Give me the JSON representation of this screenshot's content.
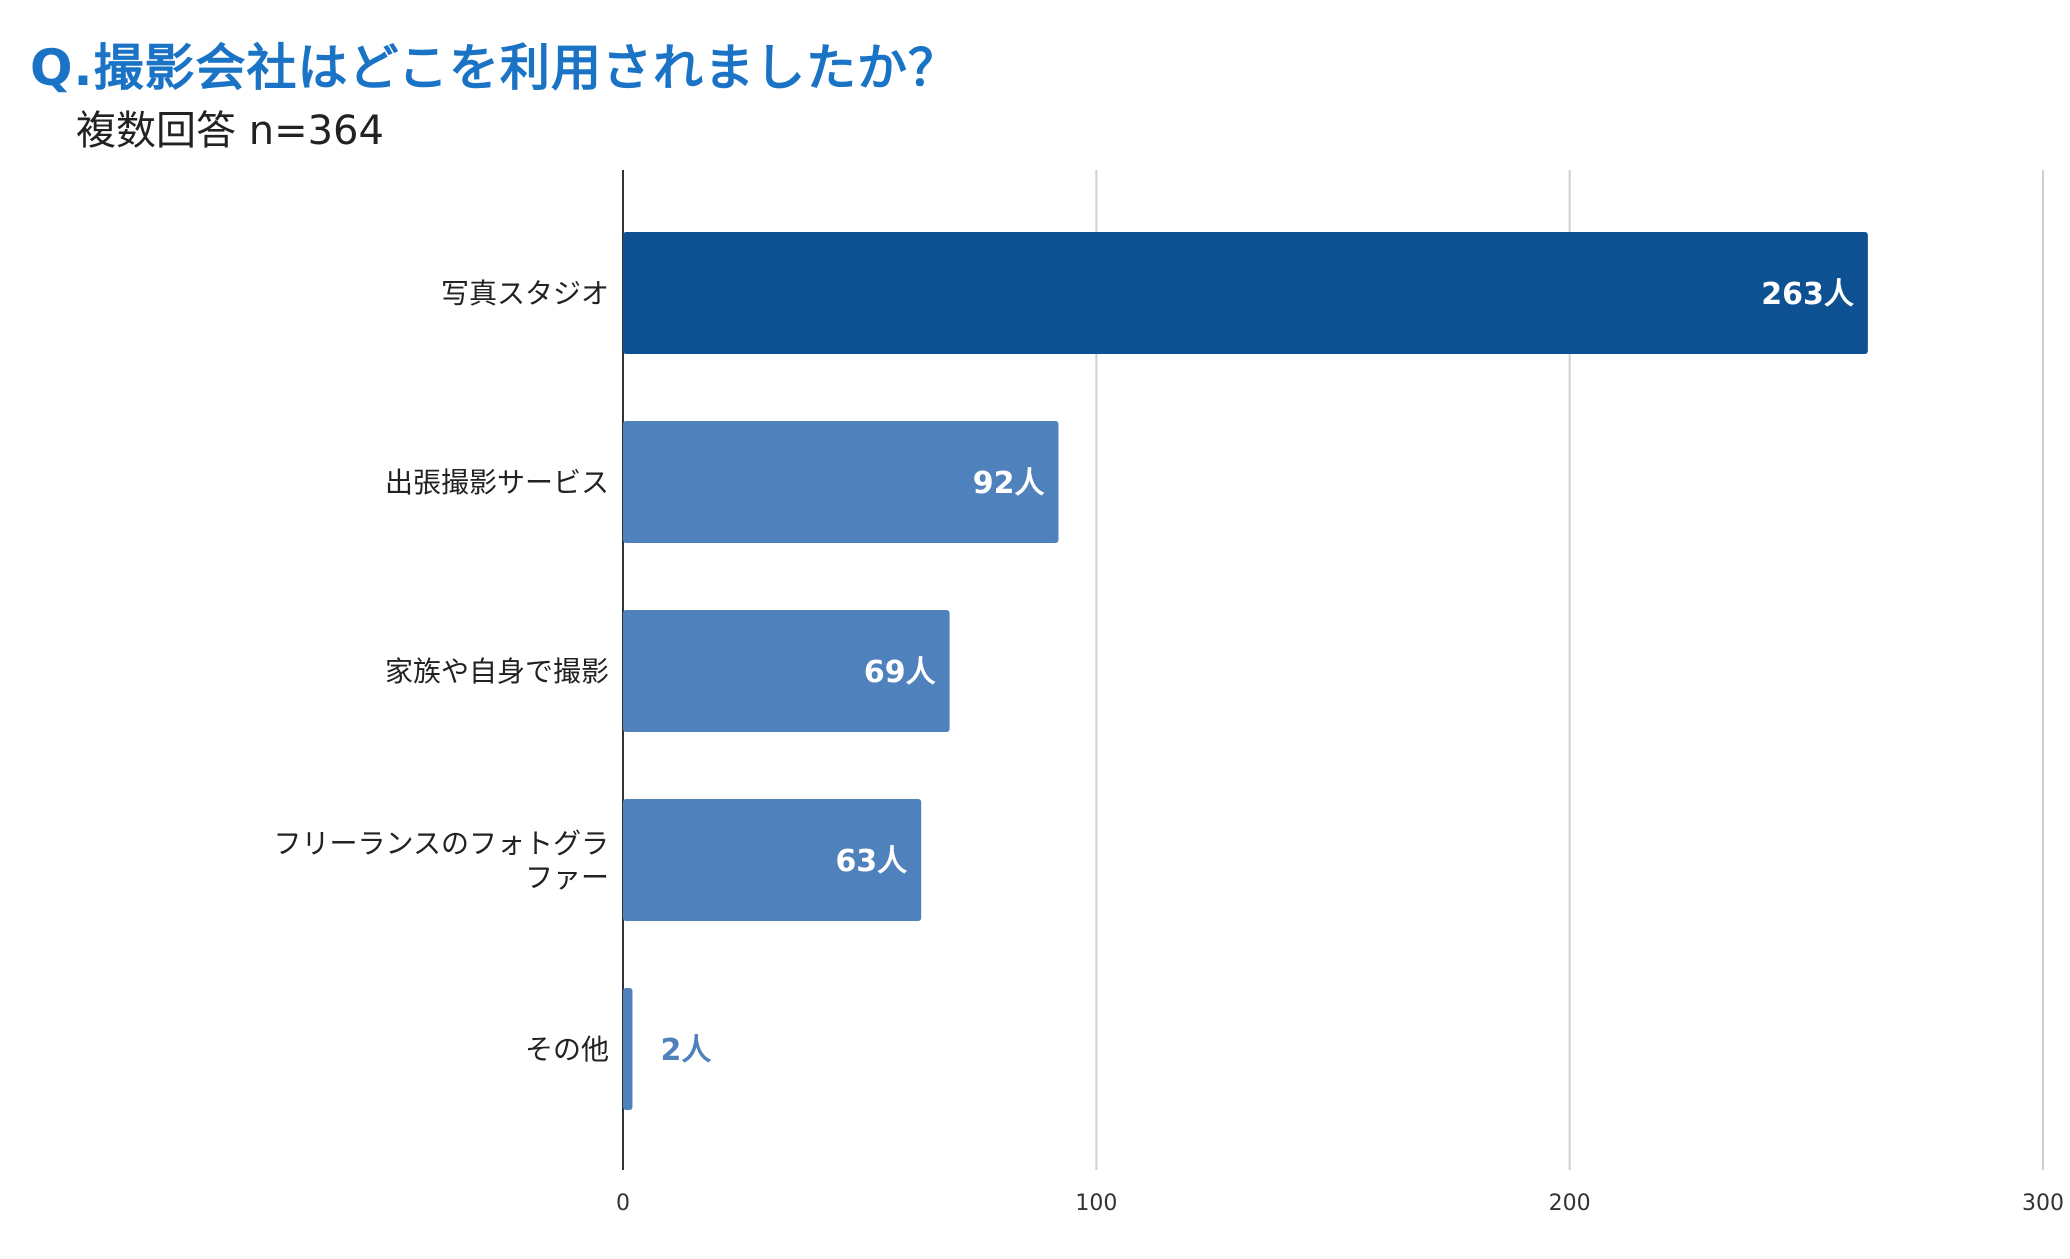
{
  "header": {
    "title": "Q.撮影会社はどこを利用されましたか？",
    "subtitle": "複数回答 n=364"
  },
  "colors": {
    "title": "#1a73c4",
    "bar_primary": "#0e5193",
    "bar_secondary": "#4f81bd",
    "label_inside": "#ffffff",
    "label_outside": "#4f81bd"
  },
  "chart_data": {
    "type": "bar",
    "orientation": "horizontal",
    "title": "Q.撮影会社はどこを利用されましたか？",
    "subtitle": "複数回答 n=364",
    "categories": [
      [
        "写真スタジオ"
      ],
      [
        "出張撮影サービス"
      ],
      [
        "家族や自身で撮影"
      ],
      [
        "フリーランスのフォトグラ",
        "ファー"
      ],
      [
        "その他"
      ]
    ],
    "values": [
      263,
      92,
      69,
      63,
      2
    ],
    "value_labels": [
      "263人",
      "92人",
      "69人",
      "63人",
      "2人"
    ],
    "xlim": [
      0,
      300
    ],
    "xticks": [
      0,
      100,
      200,
      300
    ],
    "xtick_labels": [
      "0",
      "100",
      "200",
      "300"
    ],
    "grid": true,
    "legend": "none"
  }
}
